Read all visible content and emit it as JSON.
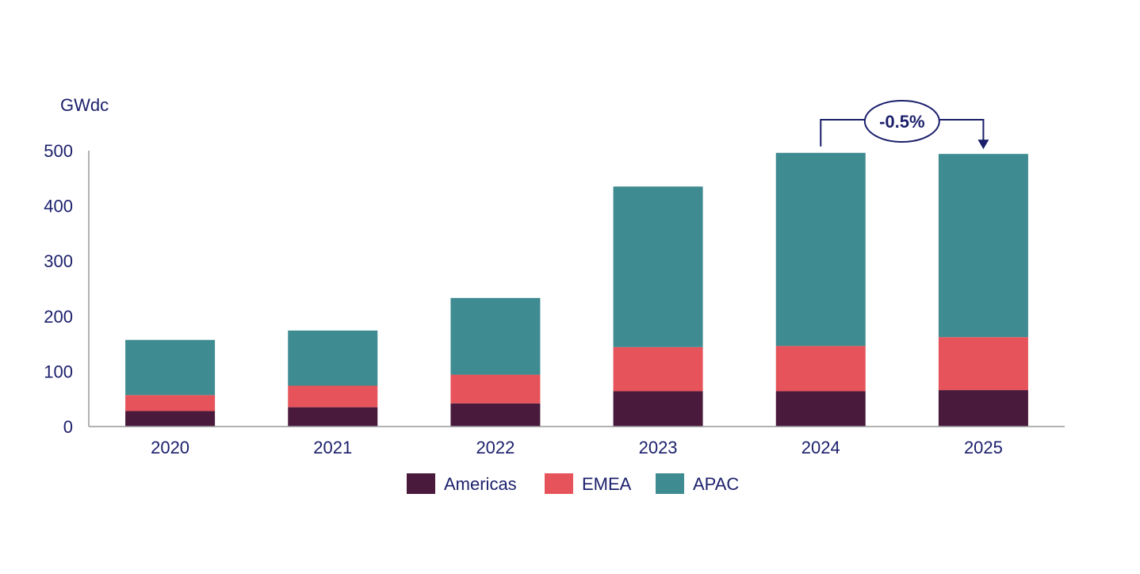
{
  "chart_data": {
    "type": "bar",
    "stacked": true,
    "title": "",
    "ylabel": "GWdc",
    "xlabel": "",
    "ylim": [
      0,
      500
    ],
    "yticks": [
      "0",
      "100",
      "200",
      "300",
      "400",
      "500"
    ],
    "categories": [
      "2020",
      "2021",
      "2022",
      "2023",
      "2024",
      "2025"
    ],
    "series": [
      {
        "name": "Americas",
        "color": "#4a1a3d",
        "values": [
          28,
          35,
          42,
          64,
          64,
          66
        ]
      },
      {
        "name": "EMEA",
        "color": "#e6535a",
        "values": [
          29,
          39,
          52,
          80,
          82,
          96
        ]
      },
      {
        "name": "APAC",
        "color": "#3e8b91",
        "values": [
          100,
          100,
          139,
          291,
          350,
          332
        ]
      }
    ],
    "legend_position": "bottom",
    "annotation": {
      "text": "-0.5%",
      "from": "2024",
      "to": "2025"
    }
  },
  "colors": {
    "axis": "#999999",
    "text": "#1b1f6b"
  }
}
